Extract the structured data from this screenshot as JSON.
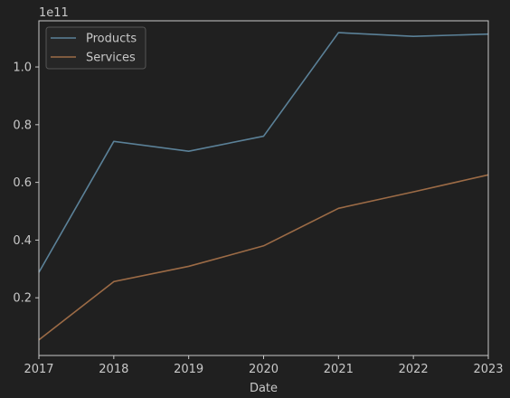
{
  "chart_data": {
    "type": "line",
    "x": [
      "2017",
      "2018",
      "2019",
      "2020",
      "2021",
      "2022",
      "2023"
    ],
    "series": [
      {
        "name": "Products",
        "color": "#5b8198",
        "values": [
          28800000000,
          74200000000,
          70800000000,
          76000000000,
          111900000000,
          110600000000,
          111400000000
        ]
      },
      {
        "name": "Services",
        "color": "#9c6b46",
        "values": [
          5400000000,
          25600000000,
          30900000000,
          38000000000,
          51000000000,
          56700000000,
          62600000000
        ]
      }
    ],
    "xlabel": "Date",
    "ylabel": "",
    "offset_label": "1e11",
    "ylim": [
      0,
      116000000000
    ],
    "y_ticks": [
      20000000000,
      40000000000,
      60000000000,
      80000000000,
      100000000000
    ],
    "y_tick_labels": [
      "0.2",
      "0.4",
      "0.6",
      "0.8",
      "1.0"
    ],
    "grid": false,
    "legend_position": "top-left",
    "style": {
      "background": "#202020",
      "axis_color": "#c8c8c8",
      "legend_background": "#262626",
      "legend_border": "#555555"
    }
  }
}
